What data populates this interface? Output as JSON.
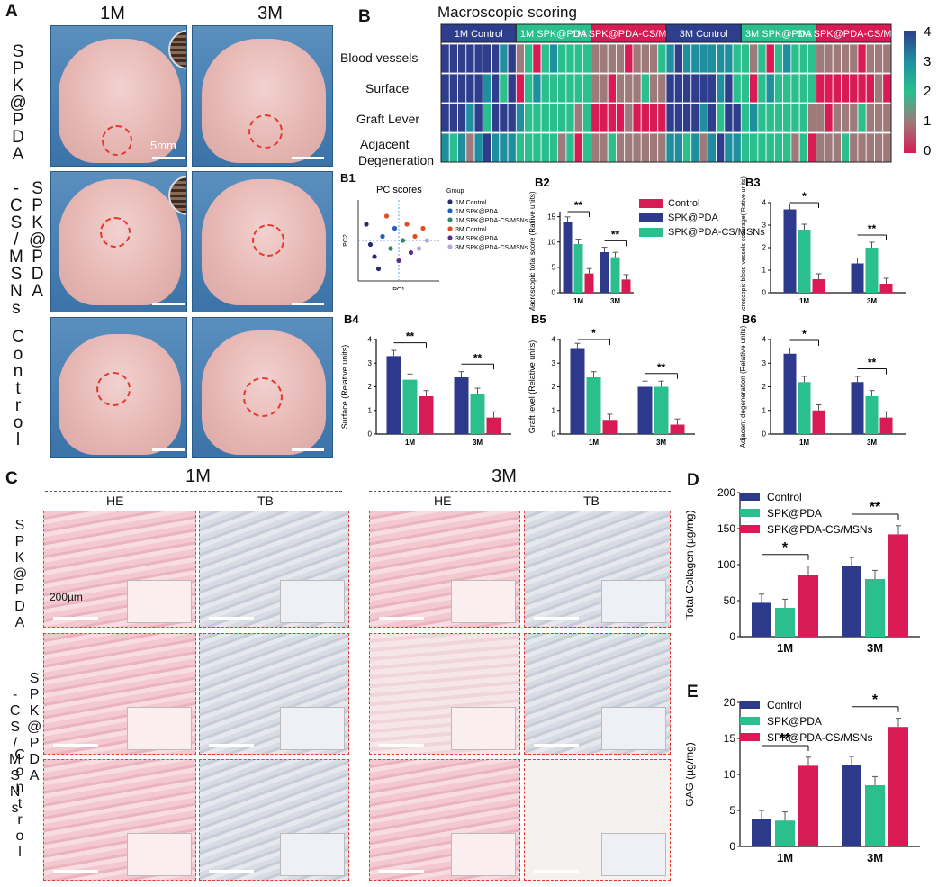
{
  "panelA": {
    "label": "A",
    "col1": "1M",
    "col2": "3M",
    "rows": [
      "SPK@PDA",
      "SPK@PDA-CS/MSNs",
      "Control"
    ],
    "scale": "5mm"
  },
  "panelB": {
    "label": "B",
    "title": "Macroscopic scoring",
    "groups": [
      "1M Control",
      "1M SPK@PDA",
      "1M SPK@PDA-CS/MSNs",
      "3M Control",
      "3M SPK@PDA",
      "3M SPK@PDA-CS/MSNs"
    ],
    "row_labels": [
      "Blood vessels",
      "Surface",
      "Graft Lever",
      "Adjacent",
      "Degeneration"
    ],
    "colorbar_ticks": [
      "4",
      "3",
      "2",
      "1",
      "0"
    ],
    "colors": {
      "c4": "#2f3e8c",
      "c3": "#1f8fa0",
      "c2": "#2bbf8e",
      "c1": "#9e7a7a",
      "c0": "#d81b55"
    }
  },
  "B1": {
    "label": "B1",
    "title": "PC scores",
    "xlabel": "PC1",
    "ylabel": "PC2",
    "legend_title": "Group",
    "legend": [
      "1M Control",
      "1M SPK@PDA",
      "1M SPK@PDA-CS/MSNs",
      "3M Control",
      "3M SPK@PDA",
      "3M SPK@PDA-CS/MSNs"
    ],
    "legend_colors": [
      "#2a2a70",
      "#1f5fbf",
      "#2a8a6a",
      "#e8491f",
      "#5b2f8f",
      "#b8a3d8"
    ]
  },
  "bar_legend": {
    "control": "Control",
    "spk": "SPK@PDA",
    "spkcs": "SPK@PDA-CS/MSNs"
  },
  "bar_colors": {
    "control": "#2d3a8c",
    "spk": "#2bbf8e",
    "spkcs": "#d81b55"
  },
  "chart_data": [
    {
      "id": "B2",
      "type": "bar",
      "categories": [
        "1M",
        "3M"
      ],
      "ylabel": "Macroscopic total score (Ratiive units)",
      "ylim": [
        0,
        16
      ],
      "yticks": [
        "0",
        "5",
        "10",
        "15"
      ],
      "series": [
        {
          "name": "Control",
          "values": [
            14,
            8
          ]
        },
        {
          "name": "SPK@PDA",
          "values": [
            9.6,
            7
          ]
        },
        {
          "name": "SPK@PDA-CS/MSNs",
          "values": [
            3.8,
            2.6
          ]
        }
      ],
      "annotations": [
        "**",
        "**",
        "**",
        "**",
        "**"
      ]
    },
    {
      "id": "B3",
      "type": "bar",
      "categories": [
        "1M",
        "3M"
      ],
      "ylabel": "Macroscopic blood vessels coverage( Rative units)",
      "ylim": [
        0,
        4
      ],
      "yticks": [
        "0",
        "1",
        "2",
        "3",
        "4"
      ],
      "series": [
        {
          "name": "Control",
          "values": [
            3.7,
            1.3
          ]
        },
        {
          "name": "SPK@PDA",
          "values": [
            2.8,
            2.0
          ]
        },
        {
          "name": "SPK@PDA-CS/MSNs",
          "values": [
            0.6,
            0.4
          ]
        }
      ],
      "annotations": [
        "*",
        "**",
        "**",
        "**"
      ]
    },
    {
      "id": "B4",
      "type": "bar",
      "categories": [
        "1M",
        "3M"
      ],
      "ylabel": "Surface (Relative units)",
      "ylim": [
        0,
        4
      ],
      "yticks": [
        "0",
        "1",
        "2",
        "3",
        "4"
      ],
      "series": [
        {
          "name": "Control",
          "values": [
            3.3,
            2.4
          ]
        },
        {
          "name": "SPK@PDA",
          "values": [
            2.3,
            1.7
          ]
        },
        {
          "name": "SPK@PDA-CS/MSNs",
          "values": [
            1.6,
            0.7
          ]
        }
      ],
      "annotations": [
        "**",
        "**"
      ]
    },
    {
      "id": "B5",
      "type": "bar",
      "categories": [
        "1M",
        "3M"
      ],
      "ylabel": "Graft level (Relative units)",
      "ylim": [
        0,
        4
      ],
      "yticks": [
        "0",
        "1",
        "2",
        "3",
        "4"
      ],
      "series": [
        {
          "name": "Control",
          "values": [
            3.6,
            2.0
          ]
        },
        {
          "name": "SPK@PDA",
          "values": [
            2.4,
            2.0
          ]
        },
        {
          "name": "SPK@PDA-CS/MSNs",
          "values": [
            0.6,
            0.4
          ]
        }
      ],
      "annotations": [
        "*",
        "**",
        "**",
        "**"
      ]
    },
    {
      "id": "B6",
      "type": "bar",
      "categories": [
        "1M",
        "3M"
      ],
      "ylabel": "Adjacent degeneration (Relative units)",
      "ylim": [
        0,
        4
      ],
      "yticks": [
        "0",
        "1",
        "2",
        "3",
        "4"
      ],
      "series": [
        {
          "name": "Control",
          "values": [
            3.4,
            2.2
          ]
        },
        {
          "name": "SPK@PDA",
          "values": [
            2.2,
            1.6
          ]
        },
        {
          "name": "SPK@PDA-CS/MSNs",
          "values": [
            1.0,
            0.7
          ]
        }
      ],
      "annotations": [
        "*",
        "**",
        "*",
        "**",
        "*"
      ]
    },
    {
      "id": "D",
      "type": "bar",
      "categories": [
        "1M",
        "3M"
      ],
      "ylabel": "Total Collagen (µg/mg)",
      "ylim": [
        0,
        200
      ],
      "yticks": [
        "0",
        "50",
        "100",
        "150",
        "200"
      ],
      "series": [
        {
          "name": "Control",
          "values": [
            47,
            98
          ]
        },
        {
          "name": "SPK@PDA",
          "values": [
            40,
            80
          ]
        },
        {
          "name": "SPK@PDA-CS/MSNs",
          "values": [
            86,
            142
          ]
        }
      ],
      "annotations": [
        "*",
        "**"
      ]
    },
    {
      "id": "E",
      "type": "bar",
      "categories": [
        "1M",
        "3M"
      ],
      "ylabel": "GAG (µg/mg)",
      "ylim": [
        0,
        20
      ],
      "yticks": [
        "0",
        "5",
        "10",
        "15",
        "20"
      ],
      "series": [
        {
          "name": "Control",
          "values": [
            3.8,
            11.3
          ]
        },
        {
          "name": "SPK@PDA",
          "values": [
            3.6,
            8.5
          ]
        },
        {
          "name": "SPK@PDA-CS/MSNs",
          "values": [
            11.2,
            16.6
          ]
        }
      ],
      "annotations": [
        "**",
        "*",
        "**"
      ]
    }
  ],
  "panelC": {
    "label": "C",
    "t1": "1M",
    "t2": "3M",
    "stains": [
      "HE",
      "TB",
      "HE",
      "TB"
    ],
    "scale": "200µm",
    "rows": [
      "SPK@PDA",
      "SPK@PDA-CS/MSNs",
      "Control"
    ]
  },
  "panelD": {
    "label": "D"
  },
  "panelE": {
    "label": "E"
  }
}
